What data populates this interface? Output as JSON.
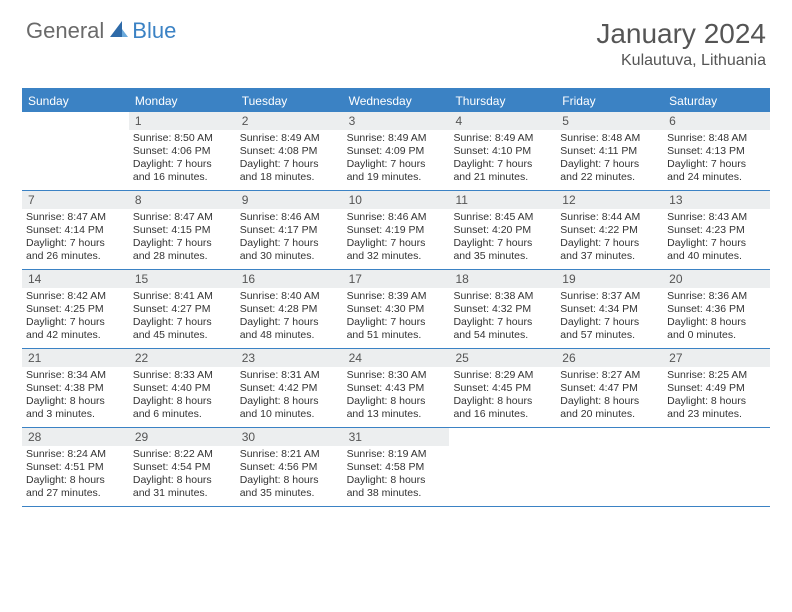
{
  "logo": {
    "text1": "General",
    "text2": "Blue"
  },
  "title": "January 2024",
  "location": "Kulautuva, Lithuania",
  "colors": {
    "brand_blue": "#3b82c4",
    "header_gray": "#6a6a6a",
    "text": "#333333",
    "daynum_bg": "#eceeef",
    "background": "#ffffff"
  },
  "calendar": {
    "dow": [
      "Sunday",
      "Monday",
      "Tuesday",
      "Wednesday",
      "Thursday",
      "Friday",
      "Saturday"
    ],
    "weeks": [
      [
        {
          "n": "",
          "lines": []
        },
        {
          "n": "1",
          "lines": [
            "Sunrise: 8:50 AM",
            "Sunset: 4:06 PM",
            "Daylight: 7 hours",
            "and 16 minutes."
          ]
        },
        {
          "n": "2",
          "lines": [
            "Sunrise: 8:49 AM",
            "Sunset: 4:08 PM",
            "Daylight: 7 hours",
            "and 18 minutes."
          ]
        },
        {
          "n": "3",
          "lines": [
            "Sunrise: 8:49 AM",
            "Sunset: 4:09 PM",
            "Daylight: 7 hours",
            "and 19 minutes."
          ]
        },
        {
          "n": "4",
          "lines": [
            "Sunrise: 8:49 AM",
            "Sunset: 4:10 PM",
            "Daylight: 7 hours",
            "and 21 minutes."
          ]
        },
        {
          "n": "5",
          "lines": [
            "Sunrise: 8:48 AM",
            "Sunset: 4:11 PM",
            "Daylight: 7 hours",
            "and 22 minutes."
          ]
        },
        {
          "n": "6",
          "lines": [
            "Sunrise: 8:48 AM",
            "Sunset: 4:13 PM",
            "Daylight: 7 hours",
            "and 24 minutes."
          ]
        }
      ],
      [
        {
          "n": "7",
          "lines": [
            "Sunrise: 8:47 AM",
            "Sunset: 4:14 PM",
            "Daylight: 7 hours",
            "and 26 minutes."
          ]
        },
        {
          "n": "8",
          "lines": [
            "Sunrise: 8:47 AM",
            "Sunset: 4:15 PM",
            "Daylight: 7 hours",
            "and 28 minutes."
          ]
        },
        {
          "n": "9",
          "lines": [
            "Sunrise: 8:46 AM",
            "Sunset: 4:17 PM",
            "Daylight: 7 hours",
            "and 30 minutes."
          ]
        },
        {
          "n": "10",
          "lines": [
            "Sunrise: 8:46 AM",
            "Sunset: 4:19 PM",
            "Daylight: 7 hours",
            "and 32 minutes."
          ]
        },
        {
          "n": "11",
          "lines": [
            "Sunrise: 8:45 AM",
            "Sunset: 4:20 PM",
            "Daylight: 7 hours",
            "and 35 minutes."
          ]
        },
        {
          "n": "12",
          "lines": [
            "Sunrise: 8:44 AM",
            "Sunset: 4:22 PM",
            "Daylight: 7 hours",
            "and 37 minutes."
          ]
        },
        {
          "n": "13",
          "lines": [
            "Sunrise: 8:43 AM",
            "Sunset: 4:23 PM",
            "Daylight: 7 hours",
            "and 40 minutes."
          ]
        }
      ],
      [
        {
          "n": "14",
          "lines": [
            "Sunrise: 8:42 AM",
            "Sunset: 4:25 PM",
            "Daylight: 7 hours",
            "and 42 minutes."
          ]
        },
        {
          "n": "15",
          "lines": [
            "Sunrise: 8:41 AM",
            "Sunset: 4:27 PM",
            "Daylight: 7 hours",
            "and 45 minutes."
          ]
        },
        {
          "n": "16",
          "lines": [
            "Sunrise: 8:40 AM",
            "Sunset: 4:28 PM",
            "Daylight: 7 hours",
            "and 48 minutes."
          ]
        },
        {
          "n": "17",
          "lines": [
            "Sunrise: 8:39 AM",
            "Sunset: 4:30 PM",
            "Daylight: 7 hours",
            "and 51 minutes."
          ]
        },
        {
          "n": "18",
          "lines": [
            "Sunrise: 8:38 AM",
            "Sunset: 4:32 PM",
            "Daylight: 7 hours",
            "and 54 minutes."
          ]
        },
        {
          "n": "19",
          "lines": [
            "Sunrise: 8:37 AM",
            "Sunset: 4:34 PM",
            "Daylight: 7 hours",
            "and 57 minutes."
          ]
        },
        {
          "n": "20",
          "lines": [
            "Sunrise: 8:36 AM",
            "Sunset: 4:36 PM",
            "Daylight: 8 hours",
            "and 0 minutes."
          ]
        }
      ],
      [
        {
          "n": "21",
          "lines": [
            "Sunrise: 8:34 AM",
            "Sunset: 4:38 PM",
            "Daylight: 8 hours",
            "and 3 minutes."
          ]
        },
        {
          "n": "22",
          "lines": [
            "Sunrise: 8:33 AM",
            "Sunset: 4:40 PM",
            "Daylight: 8 hours",
            "and 6 minutes."
          ]
        },
        {
          "n": "23",
          "lines": [
            "Sunrise: 8:31 AM",
            "Sunset: 4:42 PM",
            "Daylight: 8 hours",
            "and 10 minutes."
          ]
        },
        {
          "n": "24",
          "lines": [
            "Sunrise: 8:30 AM",
            "Sunset: 4:43 PM",
            "Daylight: 8 hours",
            "and 13 minutes."
          ]
        },
        {
          "n": "25",
          "lines": [
            "Sunrise: 8:29 AM",
            "Sunset: 4:45 PM",
            "Daylight: 8 hours",
            "and 16 minutes."
          ]
        },
        {
          "n": "26",
          "lines": [
            "Sunrise: 8:27 AM",
            "Sunset: 4:47 PM",
            "Daylight: 8 hours",
            "and 20 minutes."
          ]
        },
        {
          "n": "27",
          "lines": [
            "Sunrise: 8:25 AM",
            "Sunset: 4:49 PM",
            "Daylight: 8 hours",
            "and 23 minutes."
          ]
        }
      ],
      [
        {
          "n": "28",
          "lines": [
            "Sunrise: 8:24 AM",
            "Sunset: 4:51 PM",
            "Daylight: 8 hours",
            "and 27 minutes."
          ]
        },
        {
          "n": "29",
          "lines": [
            "Sunrise: 8:22 AM",
            "Sunset: 4:54 PM",
            "Daylight: 8 hours",
            "and 31 minutes."
          ]
        },
        {
          "n": "30",
          "lines": [
            "Sunrise: 8:21 AM",
            "Sunset: 4:56 PM",
            "Daylight: 8 hours",
            "and 35 minutes."
          ]
        },
        {
          "n": "31",
          "lines": [
            "Sunrise: 8:19 AM",
            "Sunset: 4:58 PM",
            "Daylight: 8 hours",
            "and 38 minutes."
          ]
        },
        {
          "n": "",
          "lines": []
        },
        {
          "n": "",
          "lines": []
        },
        {
          "n": "",
          "lines": []
        }
      ]
    ]
  }
}
